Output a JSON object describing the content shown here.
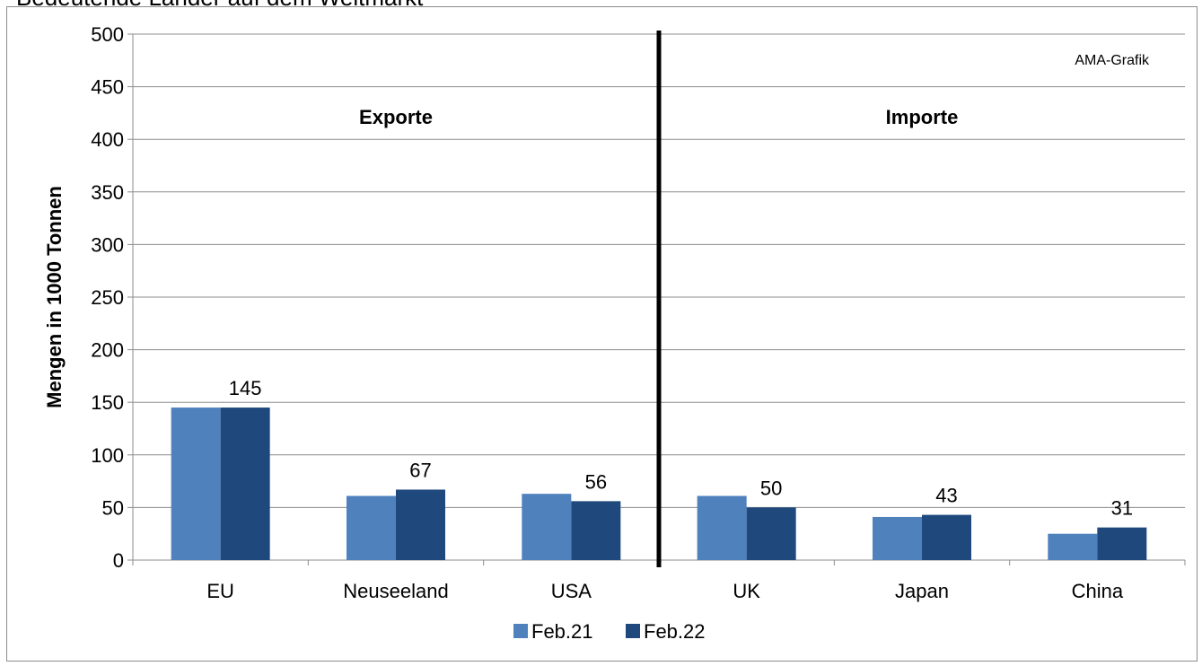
{
  "chart_data": {
    "type": "bar",
    "title": "Bedeutende Länder auf dem Weltmarkt",
    "ylabel": "Mengen in 1000 Tonnen",
    "xlabel": "",
    "ylim": [
      0,
      500
    ],
    "yticks": [
      0,
      50,
      100,
      150,
      200,
      250,
      300,
      350,
      400,
      450,
      500
    ],
    "grid": true,
    "legend_position": "bottom",
    "categories": [
      "EU",
      "Neuseeland",
      "USA",
      "UK",
      "Japan",
      "China"
    ],
    "series": [
      {
        "name": "Feb.21",
        "color": "#4f81bd",
        "values": [
          145,
          61,
          63,
          61,
          41,
          25
        ]
      },
      {
        "name": "Feb.22",
        "color": "#1f497d",
        "values": [
          145,
          67,
          56,
          50,
          43,
          31
        ]
      }
    ],
    "data_labels_series": "Feb.22",
    "group_labels": [
      "Exporte",
      "Importe"
    ],
    "annotation": "AMA-Grafik"
  }
}
